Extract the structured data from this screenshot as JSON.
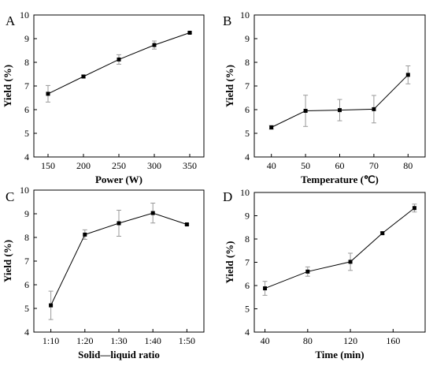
{
  "chart_data": [
    {
      "panel": "A",
      "type": "line",
      "x_type": "numeric",
      "x": [
        150,
        200,
        250,
        300,
        350
      ],
      "values": [
        6.67,
        7.4,
        8.12,
        8.73,
        9.25
      ],
      "errors": [
        0.35,
        0.06,
        0.2,
        0.17,
        0.03
      ],
      "xlabel": "Power (W)",
      "ylabel": "Yield (%)",
      "xlim": [
        130,
        370
      ],
      "ylim": [
        4,
        10
      ],
      "xticks": [
        150,
        200,
        250,
        300,
        350
      ],
      "yticks": [
        4,
        5,
        6,
        7,
        8,
        9,
        10
      ],
      "grid": false
    },
    {
      "panel": "B",
      "type": "line",
      "x_type": "numeric",
      "x": [
        40,
        50,
        60,
        70,
        80
      ],
      "values": [
        5.25,
        5.95,
        5.98,
        6.02,
        7.47
      ],
      "errors": [
        0.08,
        0.66,
        0.45,
        0.58,
        0.38
      ],
      "xlabel": "Temperature (℃)",
      "ylabel": "Yield (%)",
      "xlim": [
        35,
        85
      ],
      "ylim": [
        4,
        10
      ],
      "xticks": [
        40,
        50,
        60,
        70,
        80
      ],
      "yticks": [
        4,
        5,
        6,
        7,
        8,
        9,
        10
      ],
      "grid": false
    },
    {
      "panel": "C",
      "type": "line",
      "x_type": "category",
      "categories": [
        "1:10",
        "1:20",
        "1:30",
        "1:40",
        "1:50"
      ],
      "values": [
        5.13,
        8.12,
        8.6,
        9.03,
        8.55
      ],
      "errors": [
        0.6,
        0.2,
        0.55,
        0.42,
        0.03
      ],
      "xlabel": "Solid—liquid ratio",
      "ylabel": "Yield (%)",
      "ylim": [
        4,
        10
      ],
      "yticks": [
        4,
        5,
        6,
        7,
        8,
        9,
        10
      ],
      "grid": false
    },
    {
      "panel": "D",
      "type": "line",
      "x_type": "numeric",
      "x": [
        40,
        80,
        120,
        150,
        180
      ],
      "values": [
        5.88,
        6.6,
        7.02,
        8.25,
        9.33
      ],
      "errors": [
        0.3,
        0.2,
        0.37,
        0.05,
        0.17
      ],
      "xlabel": "Time (min)",
      "ylabel": "Yield (%)",
      "xlim": [
        30,
        190
      ],
      "ylim": [
        4,
        10
      ],
      "xticks": [
        40,
        80,
        120,
        160
      ],
      "yticks": [
        4,
        5,
        6,
        7,
        8,
        9,
        10
      ],
      "grid": false
    }
  ]
}
